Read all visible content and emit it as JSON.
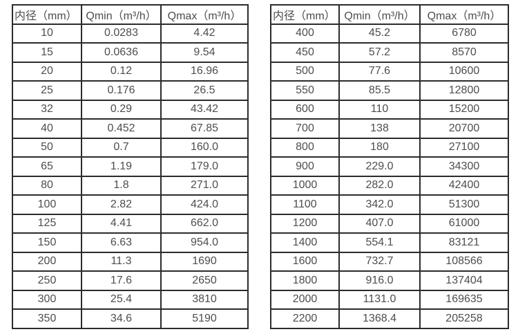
{
  "colors": {
    "background": "#ffffff",
    "text": "#4d4d4d",
    "border": "#2b2b2b"
  },
  "tables": [
    {
      "id": "small-diameter",
      "headers": [
        "内径（mm）",
        "Qmin（m³/h）",
        "Qmax（m³/h）"
      ],
      "rows": [
        [
          "10",
          "0.0283",
          "4.42"
        ],
        [
          "15",
          "0.0636",
          "9.54"
        ],
        [
          "20",
          "0.12",
          "16.96"
        ],
        [
          "25",
          "0.176",
          "26.5"
        ],
        [
          "32",
          "0.29",
          "43.42"
        ],
        [
          "40",
          "0.452",
          "67.85"
        ],
        [
          "50",
          "0.7",
          "160.0"
        ],
        [
          "65",
          "1.19",
          "179.0"
        ],
        [
          "80",
          "1.8",
          "271.0"
        ],
        [
          "100",
          "2.82",
          "424.0"
        ],
        [
          "125",
          "4.41",
          "662.0"
        ],
        [
          "150",
          "6.63",
          "954.0"
        ],
        [
          "200",
          "11.3",
          "1690"
        ],
        [
          "250",
          "17.6",
          "2650"
        ],
        [
          "300",
          "25.4",
          "3810"
        ],
        [
          "350",
          "34.6",
          "5190"
        ]
      ]
    },
    {
      "id": "large-diameter",
      "headers": [
        "内径（mm）",
        "Qmin（m³/h）",
        "Qmax（m³/h）"
      ],
      "rows": [
        [
          "400",
          "45.2",
          "6780"
        ],
        [
          "450",
          "57.2",
          "8570"
        ],
        [
          "500",
          "77.6",
          "10600"
        ],
        [
          "550",
          "85.5",
          "12800"
        ],
        [
          "600",
          "110",
          "15200"
        ],
        [
          "700",
          "138",
          "20700"
        ],
        [
          "800",
          "180",
          "27100"
        ],
        [
          "900",
          "229.0",
          "34300"
        ],
        [
          "1000",
          "282.0",
          "42400"
        ],
        [
          "1100",
          "342.0",
          "51300"
        ],
        [
          "1200",
          "407.0",
          "61000"
        ],
        [
          "1400",
          "554.1",
          "83121"
        ],
        [
          "1600",
          "732.7",
          "108566"
        ],
        [
          "1800",
          "916.0",
          "137404"
        ],
        [
          "2000",
          "1131.0",
          "169635"
        ],
        [
          "2200",
          "1368.4",
          "205258"
        ]
      ]
    }
  ]
}
